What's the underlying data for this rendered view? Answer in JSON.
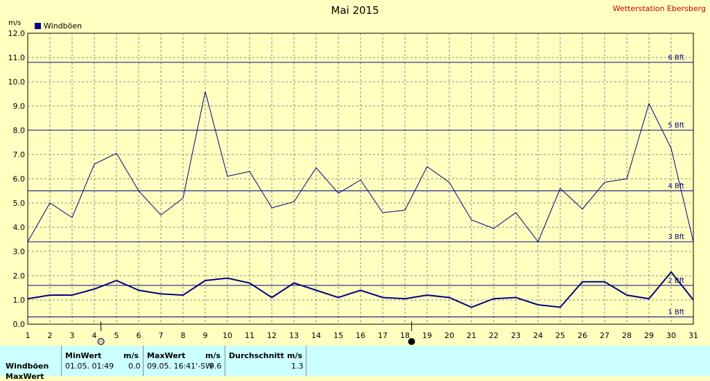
{
  "header": {
    "title": "Mai 2015",
    "station": "Wetterstation Ebersberg",
    "unit": "m/s"
  },
  "legend": {
    "label": "Windböen",
    "color": "#000080"
  },
  "chart_data": {
    "type": "line",
    "title": "Mai 2015",
    "ylabel": "m/s",
    "ylim": [
      0,
      12
    ],
    "yticks": [
      "0.0",
      "1.0",
      "2.0",
      "3.0",
      "4.0",
      "5.0",
      "6.0",
      "7.0",
      "8.0",
      "9.0",
      "10.0",
      "11.0",
      "12.0"
    ],
    "x": [
      1,
      2,
      3,
      4,
      5,
      6,
      7,
      8,
      9,
      10,
      11,
      12,
      13,
      14,
      15,
      16,
      17,
      18,
      19,
      20,
      21,
      22,
      23,
      24,
      25,
      26,
      27,
      28,
      29,
      30,
      31
    ],
    "grid": true,
    "series": [
      {
        "name": "Windböen",
        "color": "#000080",
        "width": 1,
        "values": [
          3.4,
          5.0,
          4.4,
          6.6,
          7.05,
          5.5,
          4.5,
          5.2,
          9.6,
          6.1,
          6.3,
          4.8,
          5.05,
          6.45,
          5.4,
          5.95,
          4.6,
          4.7,
          6.5,
          5.85,
          4.3,
          3.95,
          4.6,
          3.4,
          5.6,
          4.75,
          5.85,
          6.0,
          9.1,
          7.25,
          3.4
        ]
      },
      {
        "values": [
          1.05,
          1.2,
          1.2,
          1.45,
          1.8,
          1.4,
          1.25,
          1.2,
          1.8,
          1.9,
          1.7,
          1.1,
          1.7,
          1.4,
          1.1,
          1.4,
          1.1,
          1.05,
          1.2,
          1.1,
          0.7,
          1.05,
          1.1,
          0.8,
          0.7,
          1.75,
          1.75,
          1.2,
          1.05,
          2.15,
          1.0
        ],
        "color": "#000080",
        "width": 2
      }
    ],
    "reference_lines": [
      {
        "label": "1 Bft",
        "value": 0.3
      },
      {
        "label": "2 Bft",
        "value": 1.6
      },
      {
        "label": "3 Bft",
        "value": 3.4
      },
      {
        "label": "4 Bft",
        "value": 5.5
      },
      {
        "label": "5 Bft",
        "value": 8.0
      },
      {
        "label": "6 Bft",
        "value": 10.8
      }
    ],
    "markers": [
      {
        "day": 4,
        "symbol": "open-circle"
      },
      {
        "day": 18,
        "symbol": "filled-circle"
      }
    ]
  },
  "table": {
    "row_label": "Windböen",
    "row2_label": "MaxWert",
    "min_header": "MinWert",
    "min_unit": "m/s",
    "min_time": "01.05.  01:49",
    "min_value": "0.0",
    "max_header": "MaxWert",
    "max_unit": "m/s",
    "max_time": "09.05.  16:41'-SW",
    "max_value": "9.6",
    "avg_header": "Durchschnitt",
    "avg_unit": "m/s",
    "avg_value": "1.3"
  }
}
